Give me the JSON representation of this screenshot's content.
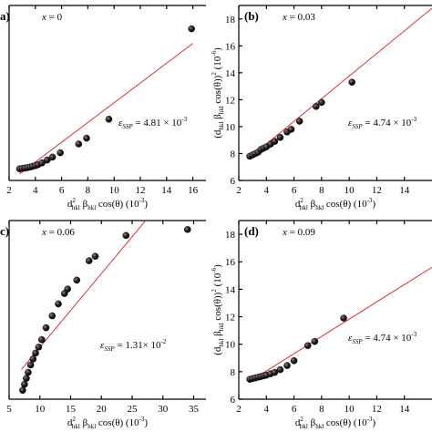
{
  "chart_data": [
    {
      "type": "scatter",
      "panel_label": "a)",
      "x_label_text": "x = 0",
      "strain_text": "4.81 × 10",
      "strain_exp": "-3",
      "xlabel": "d",
      "xlabel_parts": {
        "d_sup": "2",
        "d_sub": "hkl",
        "beta": " β",
        "beta_sub": "hkl",
        "rest": " cos(θ) (10",
        "exp": "-3",
        "close": ")"
      },
      "ylabel": "",
      "xlim": [
        2,
        17
      ],
      "ylim": [
        7,
        19
      ],
      "xticks": [
        2,
        4,
        6,
        8,
        10,
        12,
        14,
        16
      ],
      "yticks": [],
      "x": [
        2.8,
        3.0,
        3.2,
        3.4,
        3.6,
        3.8,
        4.0,
        4.2,
        4.5,
        4.9,
        5.3,
        5.9,
        7.3,
        7.9,
        9.6,
        15.9
      ],
      "y": [
        7.8,
        7.82,
        7.85,
        7.88,
        7.92,
        7.97,
        8.02,
        8.08,
        8.2,
        8.4,
        8.6,
        8.9,
        9.5,
        9.9,
        11.2,
        17.4
      ],
      "fit": {
        "x": [
          2.8,
          16.0
        ],
        "y": [
          7.45,
          16.4
        ]
      },
      "marker_color": "#111111",
      "line_color": "#e03030"
    },
    {
      "type": "scatter",
      "panel_label": "(b)",
      "x_label_text": "x = 0.03",
      "strain_text": "4.74 × 10",
      "strain_exp": "-3",
      "xlabel_parts": {
        "d_sup": "2",
        "d_sub": "hkl",
        "beta": " β",
        "beta_sub": "hkl",
        "rest": " cos(θ) (10",
        "exp": "-3",
        "close": ")"
      },
      "ylabel_parts": {
        "pre": "(d",
        "d_sub": "hkl",
        "beta": " β",
        "beta_sub": "hkl",
        "rest": " cos(θ))",
        "sq": "2",
        "unit": " (10",
        "exp": "-6",
        "close": ")"
      },
      "xlim": [
        2,
        16
      ],
      "ylim": [
        6,
        19
      ],
      "xticks": [
        2,
        4,
        6,
        8,
        10,
        12,
        14
      ],
      "yticks": [
        6,
        8,
        10,
        12,
        14,
        16,
        18
      ],
      "x": [
        2.8,
        3.0,
        3.2,
        3.4,
        3.6,
        3.8,
        4.0,
        4.3,
        4.6,
        5.0,
        5.5,
        5.8,
        6.4,
        7.6,
        8.0,
        10.2
      ],
      "y": [
        7.8,
        7.9,
        8.0,
        8.1,
        8.3,
        8.4,
        8.5,
        8.7,
        8.9,
        9.2,
        9.6,
        9.8,
        10.4,
        11.5,
        11.8,
        13.3
      ],
      "fit": {
        "x": [
          2.8,
          16.0
        ],
        "y": [
          7.7,
          18.8
        ]
      },
      "marker_color": "#111111",
      "line_color": "#e03030"
    },
    {
      "type": "scatter",
      "panel_label": "c)",
      "x_label_text": "x = 0.06",
      "strain_text": "1.31× 10",
      "strain_exp": "-2",
      "xlabel_parts": {
        "d_sup": "2",
        "d_sub": "hkl",
        "beta": " β",
        "beta_sub": "hkl",
        "rest": " cos(θ) (10",
        "exp": "-3",
        "close": ")"
      },
      "ylabel": "",
      "xlim": [
        5,
        37
      ],
      "ylim": [
        7,
        19
      ],
      "xticks": [
        5,
        10,
        15,
        20,
        25,
        30,
        35
      ],
      "yticks": [],
      "x": [
        7.2,
        7.5,
        7.8,
        8.1,
        8.5,
        8.9,
        9.3,
        9.8,
        10.3,
        11.0,
        12.0,
        13.0,
        14.0,
        14.5,
        16.0,
        18.0,
        19.0,
        24.0,
        34.0
      ],
      "y": [
        7.6,
        8.0,
        8.4,
        8.8,
        9.3,
        9.7,
        10.1,
        10.5,
        11.0,
        11.8,
        12.6,
        13.4,
        14.1,
        14.4,
        15.0,
        16.3,
        16.6,
        18.0,
        18.4
      ],
      "fit": {
        "x": [
          7.0,
          28.0
        ],
        "y": [
          9.0,
          19.4
        ]
      },
      "marker_color": "#111111",
      "line_color": "#e03030"
    },
    {
      "type": "scatter",
      "panel_label": "(d)",
      "x_label_text": "x = 0.09",
      "strain_text": "4.74 × 10",
      "strain_exp": "-3",
      "xlabel_parts": {
        "d_sup": "2",
        "d_sub": "hkl",
        "beta": " β",
        "beta_sub": "hkl",
        "rest": " cos(θ) (10",
        "exp": "-3",
        "close": ")"
      },
      "ylabel_parts": {
        "pre": "(d",
        "d_sub": "hkl",
        "beta": " β",
        "beta_sub": "hkl",
        "rest": " cos(θ))",
        "sq": "2",
        "unit": " (10",
        "exp": "-6",
        "close": ")"
      },
      "xlim": [
        2,
        16
      ],
      "ylim": [
        6,
        19
      ],
      "xticks": [
        2,
        4,
        6,
        8,
        10,
        12,
        14
      ],
      "yticks": [
        6,
        8,
        10,
        12,
        14,
        16,
        18
      ],
      "x": [
        2.8,
        3.0,
        3.2,
        3.4,
        3.6,
        3.8,
        4.0,
        4.3,
        4.6,
        5.0,
        5.5,
        6.0,
        7.0,
        7.5,
        9.6
      ],
      "y": [
        7.45,
        7.5,
        7.55,
        7.6,
        7.65,
        7.7,
        7.75,
        7.85,
        7.95,
        8.15,
        8.45,
        8.8,
        9.9,
        10.2,
        11.9
      ],
      "fit": {
        "x": [
          2.8,
          16.0
        ],
        "y": [
          7.3,
          15.6
        ]
      },
      "marker_color": "#111111",
      "line_color": "#e03030"
    }
  ]
}
